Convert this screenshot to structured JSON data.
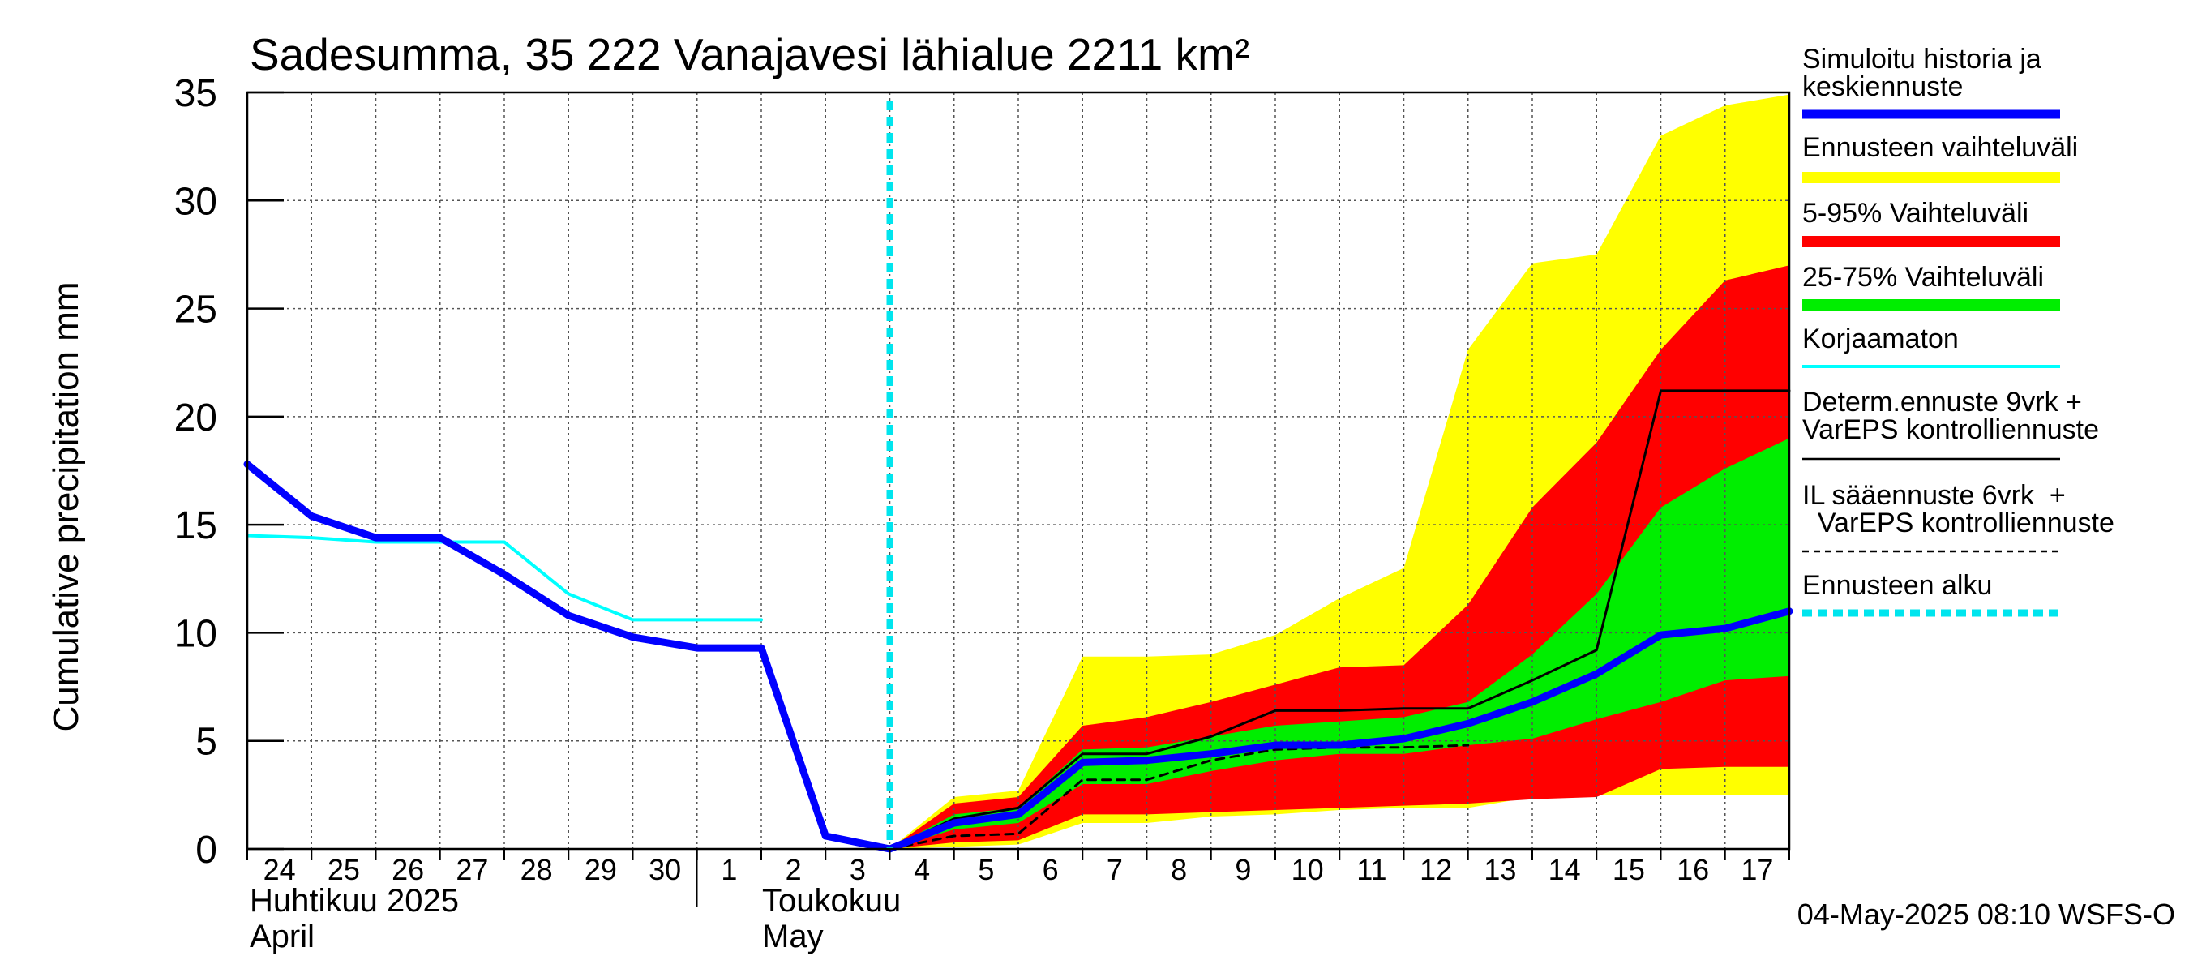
{
  "chart_data": {
    "type": "area",
    "title": "Sadesumma, 35 222 Vanajavesi lähialue 2211 km²",
    "ylabel": "Cumulative precipitation   mm",
    "xlabel": "",
    "ylim": [
      0,
      35
    ],
    "y_ticks": [
      "0",
      "5",
      "10",
      "15",
      "20",
      "25",
      "30",
      "35"
    ],
    "x_tick_labels": [
      "24",
      "25",
      "26",
      "27",
      "28",
      "29",
      "30",
      "1",
      "2",
      "3",
      "4",
      "5",
      "6",
      "7",
      "8",
      "9",
      "10",
      "11",
      "12",
      "13",
      "14",
      "15",
      "16",
      "17"
    ],
    "month_labels": [
      {
        "line1": "Huhtikuu  2025",
        "line2": "April"
      },
      {
        "line1": "Toukokuu",
        "line2": "May"
      }
    ],
    "grid": true,
    "legend_position": "right",
    "legend": [
      {
        "label": "Simuloitu historia ja keskiennuste",
        "color": "#0000ff"
      },
      {
        "label": "Ennusteen vaihteluväli",
        "color": "#ffff00"
      },
      {
        "label": "5-95% Vaihteluväli",
        "color": "#ff0000"
      },
      {
        "label": "25-75% Vaihteluväli",
        "color": "#00ee00"
      },
      {
        "label": "Korjaamaton",
        "color": "#00ffff"
      },
      {
        "label": "Determ.ennuste 9vrk + VarEPS kontrolliennuste",
        "color": "#000000"
      },
      {
        "label": "IL sääennuste 6vrk  +   VarEPS kontrolliennuste",
        "color": "#000000"
      },
      {
        "label": "Ennusteen alku",
        "color": "#00e5ee"
      }
    ],
    "forecast_start_x": 10,
    "series": [
      {
        "name": "Simuloitu historia ja keskiennuste",
        "x": [
          0,
          1,
          2,
          3,
          4,
          5,
          6,
          7,
          8,
          9,
          10,
          11,
          12,
          13,
          14,
          15,
          16,
          17,
          18,
          19,
          20,
          21,
          22,
          23,
          24
        ],
        "values": [
          17.8,
          15.4,
          14.4,
          14.4,
          12.7,
          10.8,
          9.8,
          9.3,
          9.3,
          0.6,
          0.0,
          1.2,
          1.6,
          4.0,
          4.1,
          4.4,
          4.8,
          4.8,
          5.1,
          5.8,
          6.8,
          8.1,
          9.9,
          10.2,
          11.0
        ]
      },
      {
        "name": "Korjaamaton",
        "x": [
          0,
          1,
          2,
          3,
          4,
          5,
          6,
          7,
          8
        ],
        "values": [
          14.5,
          14.4,
          14.2,
          14.2,
          14.2,
          11.8,
          10.6,
          10.6,
          10.6
        ]
      },
      {
        "name": "Determ.ennuste 9vrk + VarEPS kontrolliennuste",
        "x": [
          10,
          11,
          12,
          13,
          14,
          15,
          16,
          17,
          18,
          19,
          20,
          21,
          22,
          23,
          24
        ],
        "values": [
          0.0,
          1.4,
          1.9,
          4.4,
          4.4,
          5.2,
          6.4,
          6.4,
          6.5,
          6.5,
          7.8,
          9.2,
          21.2,
          21.2,
          21.2
        ]
      },
      {
        "name": "IL sääennuste 6vrk  +   VarEPS kontrolliennuste",
        "x": [
          10,
          11,
          12,
          13,
          14,
          15,
          16,
          17,
          18,
          19
        ],
        "values": [
          0.0,
          0.6,
          0.7,
          3.2,
          3.2,
          4.1,
          4.6,
          4.7,
          4.7,
          4.8
        ]
      }
    ],
    "bands": [
      {
        "name": "Ennusteen vaihteluväli",
        "x": [
          10,
          11,
          12,
          13,
          14,
          15,
          16,
          17,
          18,
          19,
          20,
          21,
          22,
          23,
          24
        ],
        "low": [
          0.0,
          0.1,
          0.2,
          1.2,
          1.2,
          1.5,
          1.6,
          1.8,
          1.9,
          1.9,
          2.4,
          2.5,
          2.5,
          2.5,
          2.5
        ],
        "high": [
          0.0,
          2.4,
          2.7,
          8.9,
          8.9,
          9.0,
          9.9,
          11.6,
          13.0,
          23.1,
          27.1,
          27.5,
          33.0,
          34.4,
          34.9
        ]
      },
      {
        "name": "5-95% Vaihteluväli",
        "x": [
          10,
          11,
          12,
          13,
          14,
          15,
          16,
          17,
          18,
          19,
          20,
          21,
          22,
          23,
          24
        ],
        "low": [
          0.0,
          0.3,
          0.4,
          1.6,
          1.6,
          1.7,
          1.8,
          1.9,
          2.0,
          2.1,
          2.3,
          2.4,
          3.7,
          3.8,
          3.8
        ],
        "high": [
          0.0,
          2.1,
          2.4,
          5.7,
          6.1,
          6.8,
          7.6,
          8.4,
          8.5,
          11.3,
          15.8,
          18.8,
          23.1,
          26.3,
          27.0
        ]
      },
      {
        "name": "25-75% Vaihteluväli",
        "x": [
          10,
          11,
          12,
          13,
          14,
          15,
          16,
          17,
          18,
          19,
          20,
          21,
          22,
          23,
          24
        ],
        "low": [
          0.0,
          0.9,
          1.2,
          3.0,
          3.0,
          3.6,
          4.1,
          4.4,
          4.4,
          4.8,
          5.1,
          6.0,
          6.8,
          7.8,
          8.0
        ],
        "high": [
          0.0,
          1.6,
          1.9,
          4.6,
          4.7,
          5.2,
          5.7,
          5.9,
          6.1,
          6.8,
          9.0,
          11.8,
          15.8,
          17.6,
          19.0
        ]
      }
    ]
  },
  "footer": {
    "timestamp": "04-May-2025 08:10 WSFS-O"
  }
}
